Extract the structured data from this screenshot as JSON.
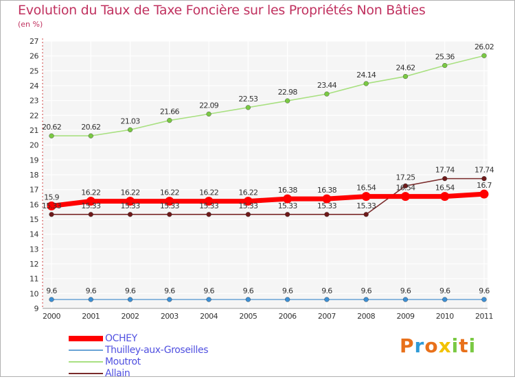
{
  "header": {
    "title": "Evolution du Taux de Taxe Foncière sur les Propriétés Non Bâties",
    "subtitle": "(en %)"
  },
  "chart_data": {
    "type": "line",
    "title": "Evolution du Taux de Taxe Foncière sur les Propriétés Non Bâties",
    "ylabel": "(en %)",
    "xlabel": "",
    "x": [
      "2000",
      "2001",
      "2002",
      "2003",
      "2004",
      "2005",
      "2006",
      "2007",
      "2008",
      "2009",
      "2010",
      "2011"
    ],
    "ylim": [
      9,
      27
    ],
    "yticks": [
      9,
      10,
      11,
      12,
      13,
      14,
      15,
      16,
      17,
      18,
      19,
      20,
      21,
      22,
      23,
      24,
      25,
      26,
      27
    ],
    "grid": true,
    "series": [
      {
        "name": "OCHEY",
        "color": "#ff0000",
        "emphasis": "thick",
        "values": [
          15.9,
          16.22,
          16.22,
          16.22,
          16.22,
          16.22,
          16.38,
          16.38,
          16.54,
          16.54,
          16.54,
          16.7
        ],
        "labels": [
          "15.9",
          "16.22",
          "16.22",
          "16.22",
          "16.22",
          "16.22",
          "16.38",
          "16.38",
          "16.54",
          "16.54",
          "16.54",
          "16.7"
        ]
      },
      {
        "name": "Thuilley-aux-Groseilles",
        "color": "#6aa3d5",
        "marker_color": "#3c8fd4",
        "values": [
          9.6,
          9.6,
          9.6,
          9.6,
          9.6,
          9.6,
          9.6,
          9.6,
          9.6,
          9.6,
          9.6,
          9.6
        ],
        "labels": [
          "9.6",
          "9.6",
          "9.6",
          "9.6",
          "9.6",
          "9.6",
          "9.6",
          "9.6",
          "9.6",
          "9.6",
          "9.6",
          "9.6"
        ]
      },
      {
        "name": "Moutrot",
        "color": "#a8e080",
        "marker_color": "#7ac943",
        "values": [
          20.62,
          20.62,
          21.03,
          21.66,
          22.09,
          22.53,
          22.98,
          23.44,
          24.14,
          24.62,
          25.36,
          26.02
        ],
        "labels": [
          "20.62",
          "20.62",
          "21.03",
          "21.66",
          "22.09",
          "22.53",
          "22.98",
          "23.44",
          "24.14",
          "24.62",
          "25.36",
          "26.02"
        ]
      },
      {
        "name": "Allain",
        "color": "#7a2a2a",
        "marker_color": "#6e1a1a",
        "values": [
          15.33,
          15.33,
          15.33,
          15.33,
          15.33,
          15.33,
          15.33,
          15.33,
          15.33,
          17.25,
          17.74,
          17.74
        ],
        "labels": [
          "15.33",
          "15.33",
          "15.33",
          "15.33",
          "15.33",
          "15.33",
          "15.33",
          "15.33",
          "15.33",
          "17.25",
          "17.74",
          "17.74"
        ]
      }
    ]
  },
  "logo": {
    "letters": [
      "P",
      "r",
      "o",
      "x",
      "i",
      "t",
      "i"
    ],
    "colors": [
      "#e8701a",
      "#2f9ad6",
      "#e8701a",
      "#f2c200",
      "#7ac943",
      "#e8701a",
      "#7ac943"
    ]
  }
}
